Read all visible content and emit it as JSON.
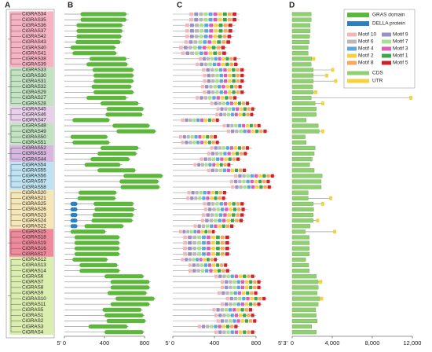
{
  "panel_labels": [
    "A",
    "B",
    "C",
    "D"
  ],
  "groups": [
    {
      "color": "#f6b3c3",
      "genes": [
        {
          "name": "CiGRAS34",
          "protein": [
            640,
            160,
            620
          ],
          "structure": [
            1900,
            1900
          ]
        },
        {
          "name": "CiGRAS35",
          "protein": [
            640,
            160,
            620
          ],
          "structure": [
            1900,
            1900
          ]
        },
        {
          "name": "CiGRAS36",
          "protein": [
            600,
            120,
            580
          ],
          "structure": [
            1800,
            1800
          ]
        },
        {
          "name": "CiGRAS37",
          "protein": [
            600,
            120,
            580
          ],
          "structure": [
            1800,
            1800
          ]
        },
        {
          "name": "CiGRAS42",
          "protein": [
            580,
            120,
            570
          ],
          "structure": [
            1750,
            1750
          ]
        },
        {
          "name": "CiGRAS43",
          "protein": [
            570,
            110,
            560
          ],
          "structure": [
            1700,
            1700
          ]
        },
        {
          "name": "CiGRAS40",
          "protein": [
            520,
            60,
            510
          ],
          "structure": [
            1600,
            1600
          ]
        },
        {
          "name": "CiGRAS41",
          "protein": [
            530,
            80,
            520
          ],
          "structure": [
            1600,
            1600
          ]
        },
        {
          "name": "CiGRAS38",
          "protein": [
            650,
            250,
            620
          ],
          "structure": [
            1950,
            2300
          ]
        },
        {
          "name": "CiGRAS39",
          "protein": [
            640,
            220,
            630
          ],
          "structure": [
            1900,
            1900
          ]
        }
      ]
    },
    {
      "color": "#c3e3c3",
      "genes": [
        {
          "name": "CiGRAS33",
          "protein": [
            700,
            280,
            690
          ],
          "structure": [
            2100,
            4200
          ]
        },
        {
          "name": "CiGRAS30",
          "protein": [
            700,
            290,
            690
          ],
          "structure": [
            2100,
            3600
          ]
        },
        {
          "name": "CiGRAS31",
          "protein": [
            700,
            290,
            690
          ],
          "structure": [
            2100,
            4500
          ]
        },
        {
          "name": "CiGRAS32",
          "protein": [
            680,
            270,
            670
          ],
          "structure": [
            2050,
            2050
          ]
        },
        {
          "name": "CiGRAS29",
          "protein": [
            700,
            290,
            690
          ],
          "structure": [
            2100,
            2500
          ]
        },
        {
          "name": "CiGRAS27",
          "protein": [
            640,
            220,
            620
          ],
          "structure": [
            1900,
            12000
          ]
        },
        {
          "name": "CiGRAS28",
          "protein": [
            760,
            360,
            740
          ],
          "structure": [
            2300,
            3200
          ]
        }
      ]
    },
    {
      "color": "#e8d0ea",
      "genes": [
        {
          "name": "CiGRAS45",
          "protein": [
            800,
            420,
            790
          ],
          "structure": [
            2400,
            2400
          ]
        },
        {
          "name": "CiGRAS46",
          "protein": [
            790,
            410,
            780
          ],
          "structure": [
            2400,
            2400
          ]
        },
        {
          "name": "CiGRAS47",
          "protein": [
            460,
            80,
            450
          ],
          "structure": [
            1400,
            1400
          ]
        }
      ]
    },
    {
      "color": "#c3e3c3",
      "genes": [
        {
          "name": "CiGRAS48",
          "protein": [
            860,
            480,
            850
          ],
          "structure": [
            2600,
            2600
          ]
        },
        {
          "name": "CiGRAS49",
          "protein": [
            920,
            520,
            910
          ],
          "structure": [
            2700,
            3200
          ]
        },
        {
          "name": "CiGRAS50",
          "protein": [
            440,
            60,
            430
          ],
          "structure": [
            1300,
            1300
          ]
        },
        {
          "name": "CiGRAS51",
          "protein": [
            460,
            80,
            450
          ],
          "structure": [
            1400,
            1400
          ]
        }
      ]
    },
    {
      "color": "#d8b8e0",
      "genes": [
        {
          "name": "CiGRAS52",
          "protein": [
            760,
            360,
            740
          ],
          "structure": [
            2300,
            2300
          ]
        },
        {
          "name": "CiGRAS53",
          "protein": [
            730,
            330,
            720
          ],
          "structure": [
            2200,
            2200
          ]
        },
        {
          "name": "CiGRAS44",
          "protein": [
            660,
            260,
            650
          ],
          "structure": [
            2000,
            2000
          ]
        }
      ]
    },
    {
      "color": "#bfe3f3",
      "genes": [
        {
          "name": "CiGRAS54",
          "protein": [
            580,
            200,
            560
          ],
          "structure": [
            1750,
            1750
          ]
        },
        {
          "name": "CiGRAS55",
          "protein": [
            720,
            330,
            710
          ],
          "structure": [
            2200,
            2200
          ]
        },
        {
          "name": "CiGRAS56",
          "protein": [
            990,
            590,
            980
          ],
          "structure": [
            3000,
            3000
          ]
        },
        {
          "name": "CiGRAS57",
          "protein": [
            950,
            550,
            940
          ],
          "structure": [
            2900,
            2900
          ]
        },
        {
          "name": "CiGRAS58",
          "protein": [
            960,
            560,
            950
          ],
          "structure": [
            2900,
            2900
          ]
        }
      ]
    },
    {
      "color": "#f6e7b8",
      "genes": [
        {
          "name": "CiGRAS20",
          "protein": [
            530,
            140,
            520
          ],
          "structure": [
            1600,
            1600
          ]
        },
        {
          "name": "CiGRAS21",
          "protein": [
            520,
            130,
            510
          ],
          "structure": [
            1600,
            4000
          ]
        },
        {
          "name": "CiGRAS25",
          "protein": [
            700,
            290,
            690
          ],
          "della": [
            60,
            130
          ],
          "structure": [
            2100,
            3200
          ]
        },
        {
          "name": "CiGRAS26",
          "protein": [
            720,
            300,
            700
          ],
          "della": [
            60,
            130
          ],
          "structure": [
            2150,
            2150
          ]
        },
        {
          "name": "CiGRAS23",
          "protein": [
            700,
            280,
            690
          ],
          "della": [
            60,
            130
          ],
          "structure": [
            2100,
            2100
          ]
        },
        {
          "name": "CiGRAS24",
          "protein": [
            690,
            270,
            680
          ],
          "della": [
            60,
            130
          ],
          "structure": [
            2100,
            2700
          ]
        },
        {
          "name": "CiGRAS22",
          "protein": [
            600,
            200,
            590
          ],
          "della": [
            60,
            130
          ],
          "structure": [
            1800,
            1800
          ]
        }
      ]
    },
    {
      "color": "#ef8a9c",
      "genes": [
        {
          "name": "CiGRAS15",
          "protein": [
            420,
            60,
            410
          ],
          "structure": [
            1300,
            4400
          ]
        },
        {
          "name": "CiGRAS18",
          "protein": [
            560,
            100,
            550
          ],
          "structure": [
            1700,
            1700
          ]
        },
        {
          "name": "CiGRAS19",
          "protein": [
            560,
            100,
            550
          ],
          "structure": [
            1700,
            1700
          ]
        },
        {
          "name": "CiGRAS16",
          "protein": [
            560,
            100,
            550
          ],
          "structure": [
            1700,
            1700
          ]
        },
        {
          "name": "CiGRAS17",
          "protein": [
            560,
            100,
            550
          ],
          "structure": [
            1700,
            1700
          ]
        }
      ]
    },
    {
      "color": "#dcedb0",
      "genes": [
        {
          "name": "CiGRAS12",
          "protein": [
            440,
            80,
            430
          ],
          "structure": [
            1350,
            1350
          ]
        },
        {
          "name": "CiGRAS13",
          "protein": [
            540,
            150,
            530
          ],
          "structure": [
            1650,
            1650
          ]
        },
        {
          "name": "CiGRAS14",
          "protein": [
            560,
            150,
            550
          ],
          "structure": [
            1700,
            1700
          ]
        },
        {
          "name": "CiGRAS6",
          "protein": [
            800,
            400,
            790
          ],
          "structure": [
            2400,
            2400
          ]
        },
        {
          "name": "CiGRAS7",
          "protein": [
            860,
            460,
            850
          ],
          "structure": [
            2600,
            3000
          ]
        },
        {
          "name": "CiGRAS8",
          "protein": [
            860,
            460,
            850
          ],
          "structure": [
            2600,
            2600
          ]
        },
        {
          "name": "CiGRAS9",
          "protein": [
            830,
            430,
            820
          ],
          "structure": [
            2500,
            2500
          ]
        },
        {
          "name": "CiGRAS10",
          "protein": [
            910,
            510,
            900
          ],
          "structure": [
            2750,
            3100
          ]
        },
        {
          "name": "CiGRAS11",
          "protein": [
            860,
            460,
            850
          ],
          "structure": [
            2600,
            2600
          ]
        },
        {
          "name": "CiGRAS5",
          "protein": [
            780,
            380,
            770
          ],
          "structure": [
            2350,
            2350
          ]
        },
        {
          "name": "CiGRAS1",
          "protein": [
            800,
            400,
            790
          ],
          "structure": [
            2400,
            2400
          ]
        },
        {
          "name": "CiGRAS2",
          "protein": [
            820,
            420,
            810
          ],
          "structure": [
            2500,
            2500
          ]
        },
        {
          "name": "CiGRAS3",
          "protein": [
            640,
            240,
            630
          ],
          "structure": [
            1950,
            1950
          ]
        },
        {
          "name": "CiGRAS4",
          "protein": [
            800,
            400,
            790
          ],
          "structure": [
            2400,
            2400
          ]
        }
      ]
    }
  ],
  "protein_axis": {
    "start_label": "5'",
    "ticks": [
      0,
      400,
      800
    ]
  },
  "motif_axis": {
    "start_label": "5'",
    "end_label": "5'",
    "ticks": [
      0,
      400,
      800
    ]
  },
  "gene_axis": {
    "start_label": "3'",
    "ticks": [
      0,
      {
        "value": 4000,
        "label": "4,000"
      },
      {
        "value": 8000,
        "label": "8,000"
      },
      {
        "value": 12000,
        "label": "12,000"
      }
    ]
  },
  "legend": {
    "domains": [
      {
        "name": "GRAS domain",
        "color": "#5cb83a"
      },
      {
        "name": "DELLA protein",
        "color": "#2b7fc4"
      }
    ],
    "motifs": [
      {
        "name": "Motif 10",
        "color": "#f4b6b6"
      },
      {
        "name": "Motif 9",
        "color": "#9b8fc7"
      },
      {
        "name": "Motif 6",
        "color": "#b8b8b8"
      },
      {
        "name": "Motif 7",
        "color": "#a8e08c"
      },
      {
        "name": "Motif 4",
        "color": "#5aa8e0"
      },
      {
        "name": "Motif 3",
        "color": "#e05cb8"
      },
      {
        "name": "Motif 2",
        "color": "#f7d23a"
      },
      {
        "name": "Motif 1",
        "color": "#3aa84a"
      },
      {
        "name": "Motif 8",
        "color": "#f7a85a"
      },
      {
        "name": "Motif 5",
        "color": "#d0202a"
      }
    ],
    "structure": [
      {
        "name": "CDS",
        "color": "#8fd070"
      },
      {
        "name": "UTR",
        "color": "#f7d23a"
      }
    ]
  }
}
